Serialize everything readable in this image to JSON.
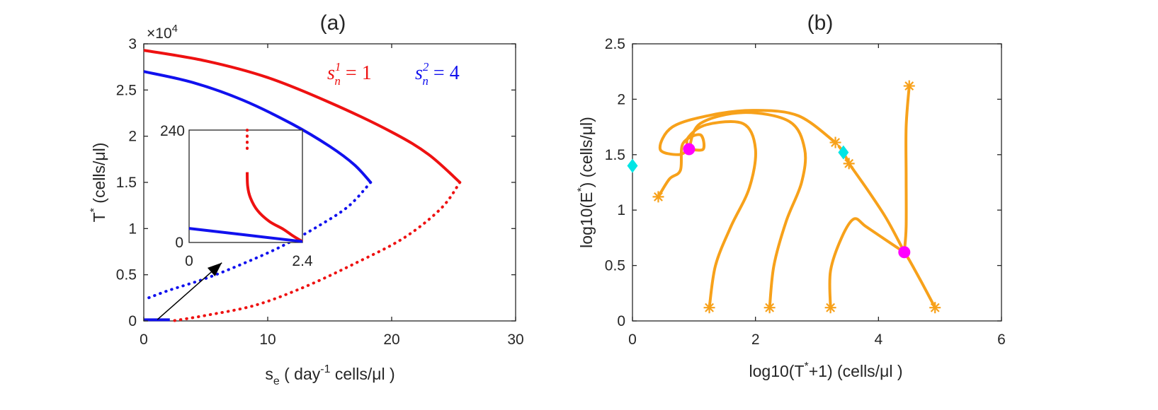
{
  "chart_data": [
    {
      "type": "line",
      "title": "(a)",
      "xlabel": {
        "main": "s",
        "sub": "e",
        "pre": " ( day",
        "sup": "-1",
        "post": " cells/μl )"
      },
      "ylabel": {
        "main": "T",
        "sup": "*",
        "post": " (cells/μl)"
      },
      "xlim": [
        0,
        30
      ],
      "ylim": [
        0,
        30000
      ],
      "xticks": [
        0,
        10,
        20,
        30
      ],
      "xticklabels": [
        "0",
        "10",
        "20",
        "30"
      ],
      "yticks": [
        0,
        5000,
        10000,
        15000,
        20000,
        25000,
        30000
      ],
      "yticklabels": [
        "0",
        "0.5",
        "1",
        "1.5",
        "2",
        "2.5",
        "3"
      ],
      "exponent_label": {
        "prefix": "×10",
        "power": "4"
      },
      "colors": {
        "red": "#ee1111",
        "blue": "#1111ee",
        "axis": "#262626"
      },
      "legend": [
        {
          "base": "s",
          "sub": "n",
          "sup": "1",
          "value": " = 1",
          "color": "#ee1111"
        },
        {
          "base": "s",
          "sub": "n",
          "sup": "2",
          "value": " = 4",
          "color": "#1111ee"
        }
      ],
      "series": [
        {
          "name": "red stable",
          "color": "#ee1111",
          "style": "solid",
          "points": [
            [
              0,
              29300
            ],
            [
              5,
              28150
            ],
            [
              10,
              26350
            ],
            [
              15,
              23650
            ],
            [
              20,
              20450
            ],
            [
              23,
              18000
            ],
            [
              25.5,
              15000
            ]
          ]
        },
        {
          "name": "red unstable",
          "color": "#ee1111",
          "style": "dotted",
          "points": [
            [
              25.5,
              15000
            ],
            [
              24,
              12200
            ],
            [
              21,
              9000
            ],
            [
              17,
              6200
            ],
            [
              13,
              3700
            ],
            [
              9,
              1700
            ],
            [
              5,
              600
            ],
            [
              2.3,
              0
            ]
          ]
        },
        {
          "name": "blue stable",
          "color": "#1111ee",
          "style": "solid",
          "points": [
            [
              0,
              27000
            ],
            [
              4,
              25800
            ],
            [
              8,
              23900
            ],
            [
              12,
              21300
            ],
            [
              15,
              18900
            ],
            [
              17,
              16900
            ],
            [
              18.3,
              15000
            ]
          ]
        },
        {
          "name": "blue unstable",
          "color": "#1111ee",
          "style": "dotted",
          "points": [
            [
              18.3,
              15000
            ],
            [
              16.5,
              12400
            ],
            [
              14,
              10200
            ],
            [
              11,
              8000
            ],
            [
              8,
              6200
            ],
            [
              5,
              4600
            ],
            [
              2,
              3300
            ],
            [
              0,
              2300
            ]
          ]
        },
        {
          "name": "blue low branch",
          "color": "#1111ee",
          "style": "solid",
          "points": [
            [
              0,
              120
            ],
            [
              2.1,
              120
            ]
          ]
        }
      ],
      "annotation_arrow": {
        "from": [
          1.1,
          150
        ],
        "to": [
          6.3,
          6300
        ]
      },
      "inset": {
        "xlim": [
          0,
          2.4
        ],
        "ylim": [
          0,
          240
        ],
        "xticklabels": [
          "0",
          "2.4"
        ],
        "yticklabels": [
          "0",
          "240"
        ],
        "series": [
          {
            "color": "#ee1111",
            "style": "dotted",
            "points": [
              [
                1.23,
                240
              ],
              [
                1.23,
                190
              ]
            ]
          },
          {
            "color": "#ee1111",
            "style": "solid",
            "points": [
              [
                1.23,
                150
              ],
              [
                1.24,
                120
              ],
              [
                1.3,
                95
              ],
              [
                1.45,
                68
              ],
              [
                1.7,
                45
              ],
              [
                2.0,
                28
              ],
              [
                2.2,
                14
              ],
              [
                2.4,
                2
              ]
            ]
          },
          {
            "color": "#1111ee",
            "style": "solid",
            "points": [
              [
                0,
                30
              ],
              [
                2.4,
                2
              ]
            ]
          }
        ]
      }
    },
    {
      "type": "line",
      "title": "(b)",
      "xlabel": {
        "pre": "log10(T",
        "sup": "*",
        "post": "+1) (cells/μl )"
      },
      "ylabel": {
        "pre": "log10(E",
        "sup": "*",
        "post": ") (cells/μl)"
      },
      "xlim": [
        0,
        6
      ],
      "ylim": [
        0,
        2.5
      ],
      "xticks": [
        0,
        2,
        4,
        6
      ],
      "xticklabels": [
        "0",
        "2",
        "4",
        "6"
      ],
      "yticks": [
        0,
        0.5,
        1,
        1.5,
        2,
        2.5
      ],
      "yticklabels": [
        "0",
        "0.5",
        "1",
        "1.5",
        "2",
        "2.5"
      ],
      "colors": {
        "trajectory": "#f7a11a",
        "stable_point": "#ff00ff",
        "saddle_point": "#00e5e5"
      },
      "trajectories": [
        [
          [
            0.42,
            1.12
          ],
          [
            0.6,
            1.28
          ],
          [
            0.78,
            1.36
          ],
          [
            0.82,
            1.6
          ],
          [
            1.1,
            1.68
          ],
          [
            1.15,
            1.55
          ],
          [
            0.92,
            1.55
          ]
        ],
        [
          [
            3.3,
            1.61
          ],
          [
            2.7,
            1.85
          ],
          [
            2.0,
            1.9
          ],
          [
            1.3,
            1.86
          ],
          [
            0.65,
            1.75
          ],
          [
            0.45,
            1.55
          ],
          [
            0.75,
            1.5
          ],
          [
            0.92,
            1.55
          ]
        ],
        [
          [
            1.25,
            0.12
          ],
          [
            1.35,
            0.5
          ],
          [
            1.6,
            0.85
          ],
          [
            1.9,
            1.2
          ],
          [
            2.0,
            1.55
          ],
          [
            1.8,
            1.78
          ],
          [
            1.2,
            1.77
          ],
          [
            0.9,
            1.65
          ],
          [
            0.92,
            1.55
          ]
        ],
        [
          [
            2.23,
            0.12
          ],
          [
            2.3,
            0.5
          ],
          [
            2.5,
            0.9
          ],
          [
            2.75,
            1.25
          ],
          [
            2.8,
            1.55
          ],
          [
            2.55,
            1.8
          ],
          [
            1.8,
            1.88
          ],
          [
            1.1,
            1.78
          ],
          [
            0.92,
            1.55
          ]
        ],
        [
          [
            3.22,
            0.12
          ],
          [
            3.22,
            0.45
          ],
          [
            3.4,
            0.75
          ],
          [
            3.6,
            0.92
          ],
          [
            3.8,
            0.85
          ],
          [
            4.2,
            0.7
          ],
          [
            4.42,
            0.62
          ]
        ],
        [
          [
            4.5,
            2.12
          ],
          [
            4.45,
            1.75
          ],
          [
            4.45,
            1.3
          ],
          [
            4.45,
            0.85
          ],
          [
            4.42,
            0.62
          ]
        ],
        [
          [
            4.92,
            0.12
          ],
          [
            4.7,
            0.35
          ],
          [
            4.5,
            0.55
          ],
          [
            4.42,
            0.62
          ]
        ],
        [
          [
            3.52,
            1.42
          ],
          [
            3.8,
            1.2
          ],
          [
            4.1,
            0.95
          ],
          [
            4.3,
            0.75
          ],
          [
            4.42,
            0.62
          ]
        ],
        [
          [
            3.35,
            1.58
          ],
          [
            3.43,
            1.52
          ],
          [
            3.52,
            1.42
          ]
        ]
      ],
      "start_markers": [
        [
          0.42,
          1.12
        ],
        [
          1.25,
          0.12
        ],
        [
          2.23,
          0.12
        ],
        [
          3.22,
          0.12
        ],
        [
          3.3,
          1.61
        ],
        [
          3.52,
          1.42
        ],
        [
          4.5,
          2.12
        ],
        [
          4.92,
          0.12
        ]
      ],
      "stable_points": [
        [
          0.92,
          1.55
        ],
        [
          4.42,
          0.62
        ]
      ],
      "saddle_points": [
        [
          0.0,
          1.4
        ],
        [
          3.43,
          1.52
        ]
      ]
    }
  ]
}
